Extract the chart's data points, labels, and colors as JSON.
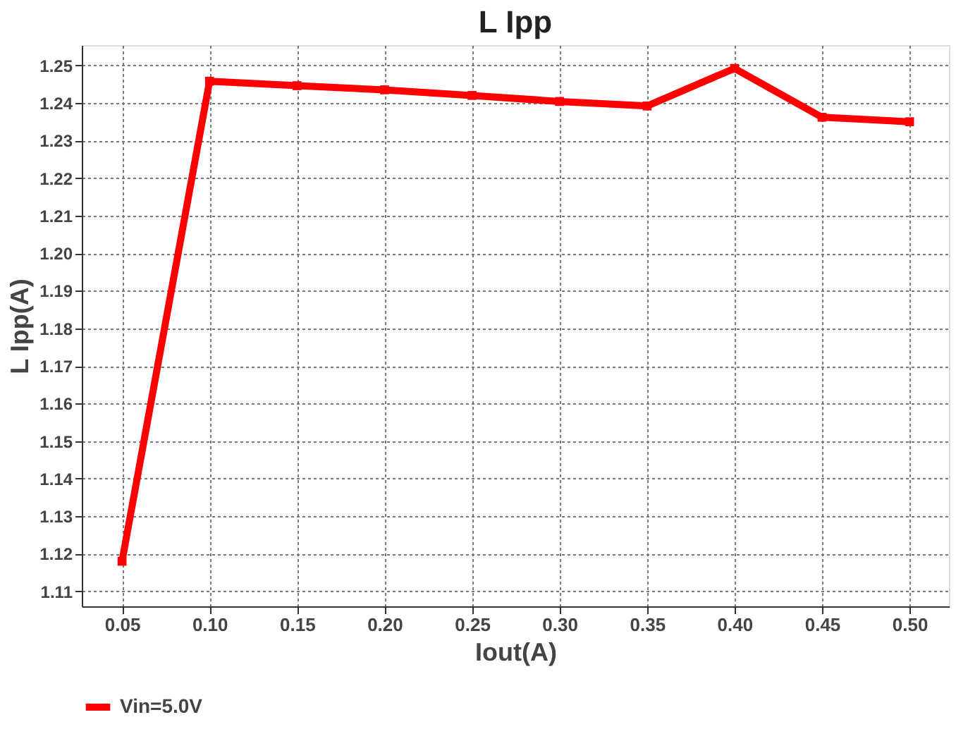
{
  "chart_data": {
    "type": "line",
    "title": "L Ipp",
    "xlabel": "Iout(A)",
    "ylabel": "L Ipp(A)",
    "x": [
      0.05,
      0.1,
      0.15,
      0.2,
      0.25,
      0.3,
      0.35,
      0.4,
      0.45,
      0.5
    ],
    "series": [
      {
        "name": "Vin=5.0V",
        "color": "#ff0000",
        "values": [
          1.118,
          1.2458,
          1.2446,
          1.2435,
          1.242,
          1.2404,
          1.2392,
          1.2492,
          1.2362,
          1.235
        ]
      }
    ],
    "xlim": [
      0.027,
      0.5225
    ],
    "xticks": [
      {
        "value": 0.05,
        "label": "0.05"
      },
      {
        "value": 0.1,
        "label": "0.10"
      },
      {
        "value": 0.15,
        "label": "0.15"
      },
      {
        "value": 0.2,
        "label": "0.20"
      },
      {
        "value": 0.25,
        "label": "0.25"
      },
      {
        "value": 0.3,
        "label": "0.30"
      },
      {
        "value": 0.35,
        "label": "0.35"
      },
      {
        "value": 0.4,
        "label": "0.40"
      },
      {
        "value": 0.45,
        "label": "0.45"
      },
      {
        "value": 0.5,
        "label": "0.50"
      }
    ],
    "ylim": [
      1.106,
      1.2554
    ],
    "yticks": [
      {
        "value": 1.11,
        "label": "1.11"
      },
      {
        "value": 1.12,
        "label": "1.12"
      },
      {
        "value": 1.13,
        "label": "1.13"
      },
      {
        "value": 1.14,
        "label": "1.14"
      },
      {
        "value": 1.15,
        "label": "1.15"
      },
      {
        "value": 1.16,
        "label": "1.16"
      },
      {
        "value": 1.17,
        "label": "1.17"
      },
      {
        "value": 1.18,
        "label": "1.18"
      },
      {
        "value": 1.19,
        "label": "1.19"
      },
      {
        "value": 1.2,
        "label": "1.20"
      },
      {
        "value": 1.21,
        "label": "1.21"
      },
      {
        "value": 1.22,
        "label": "1.22"
      },
      {
        "value": 1.23,
        "label": "1.23"
      },
      {
        "value": 1.24,
        "label": "1.24"
      },
      {
        "value": 1.25,
        "label": "1.25"
      }
    ],
    "grid": true,
    "legend": "bottom",
    "marker": "square",
    "line_style": "solid"
  }
}
